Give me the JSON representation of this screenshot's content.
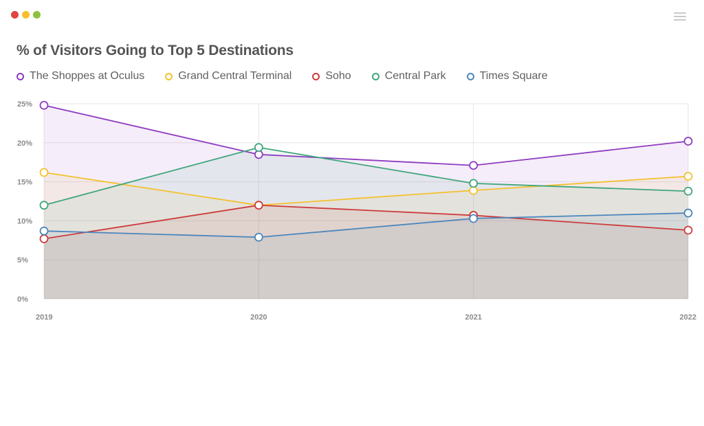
{
  "window": {
    "controls": [
      {
        "name": "close",
        "color": "#e0443e"
      },
      {
        "name": "minimize",
        "color": "#f5c02c"
      },
      {
        "name": "maximize",
        "color": "#8fc13e"
      }
    ]
  },
  "menu_icon": "hamburger-menu-icon",
  "chart_data": {
    "type": "line",
    "title": "% of Visitors Going to Top 5 Destinations",
    "xlabel": "",
    "ylabel": "",
    "categories": [
      "2019",
      "2020",
      "2021",
      "2022"
    ],
    "y_ticks": [
      "0%",
      "5%",
      "10%",
      "15%",
      "20%",
      "25%"
    ],
    "y_tick_values": [
      0,
      5,
      10,
      15,
      20,
      25
    ],
    "ylim": [
      0,
      25
    ],
    "grid": true,
    "legend_position": "top-left",
    "series": [
      {
        "name": "The Shoppes at Oculus",
        "color": "#8e3bbf",
        "values": [
          24.8,
          18.5,
          17.1,
          20.2
        ]
      },
      {
        "name": "Grand Central Terminal",
        "color": "#f3c12c",
        "values": [
          16.2,
          12.0,
          13.9,
          15.7
        ]
      },
      {
        "name": "Soho",
        "color": "#cc3b3b",
        "values": [
          7.7,
          12.0,
          10.7,
          8.8
        ]
      },
      {
        "name": "Central Park",
        "color": "#3fa57c",
        "values": [
          12.0,
          19.4,
          14.8,
          13.8
        ]
      },
      {
        "name": "Times Square",
        "color": "#4a86bd",
        "values": [
          8.7,
          7.9,
          10.3,
          11.0
        ]
      }
    ]
  }
}
